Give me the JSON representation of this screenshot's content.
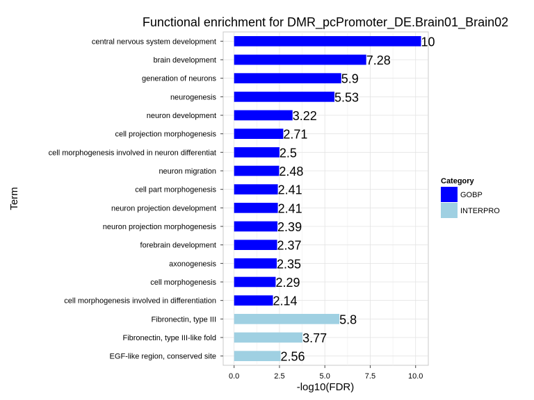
{
  "chart_data": {
    "type": "bar",
    "orientation": "horizontal",
    "title": "Functional enrichment for DMR_pcPromoter_DE.Brain01_Brain02",
    "xlabel": "-log10(FDR)",
    "ylabel": "Term",
    "xlim": [
      -0.6,
      10.7
    ],
    "xticks": [
      0.0,
      2.5,
      5.0,
      7.5,
      10.0
    ],
    "xtick_labels": [
      "0.0",
      "2.5",
      "5.0",
      "7.5",
      "10.0"
    ],
    "grid": true,
    "legend": {
      "title": "Category",
      "placement": "right",
      "entries": [
        {
          "name": "GOBP",
          "color": "#0000ff"
        },
        {
          "name": "INTERPRO",
          "color": "#9fd0e2"
        }
      ]
    },
    "categories": [
      "central nervous system development",
      "brain development",
      "generation of neurons",
      "neurogenesis",
      "neuron development",
      "cell projection morphogenesis",
      "cell morphogenesis involved in neuron differentiat",
      "neuron migration",
      "cell part morphogenesis",
      "neuron projection development",
      "neuron projection morphogenesis",
      "forebrain development",
      "axonogenesis",
      "cell morphogenesis",
      "cell morphogenesis involved in differentiation",
      "Fibronectin, type III",
      "Fibronectin, type III-like fold",
      "EGF-like region, conserved site"
    ],
    "values": [
      10.3,
      7.28,
      5.9,
      5.53,
      3.22,
      2.71,
      2.5,
      2.48,
      2.41,
      2.41,
      2.39,
      2.37,
      2.35,
      2.29,
      2.14,
      5.8,
      3.77,
      2.56
    ],
    "value_labels": [
      "10",
      "7.28",
      "5.9",
      "5.53",
      "3.22",
      "2.71",
      "2.5",
      "2.48",
      "2.41",
      "2.41",
      "2.39",
      "2.37",
      "2.35",
      "2.29",
      "2.14",
      "5.8",
      "3.77",
      "2.56"
    ],
    "bar_category": [
      "GOBP",
      "GOBP",
      "GOBP",
      "GOBP",
      "GOBP",
      "GOBP",
      "GOBP",
      "GOBP",
      "GOBP",
      "GOBP",
      "GOBP",
      "GOBP",
      "GOBP",
      "GOBP",
      "GOBP",
      "INTERPRO",
      "INTERPRO",
      "INTERPRO"
    ]
  }
}
